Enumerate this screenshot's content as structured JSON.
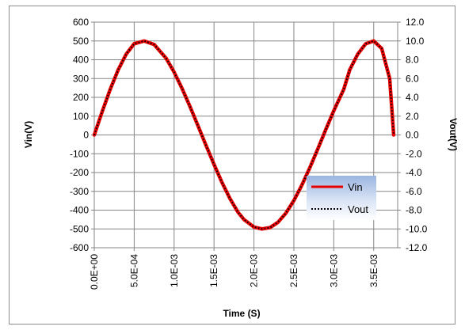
{
  "chart_data": {
    "type": "line",
    "title": "",
    "xlabel": "Time (S)",
    "ylabel": "Vin(V)",
    "y2label": "Vout(V)",
    "xlim": [
      0,
      0.0038
    ],
    "ylim": [
      -600,
      600
    ],
    "y2lim": [
      -12,
      12
    ],
    "grid": true,
    "legend_placement": "lower-right",
    "x_tick_labels": [
      "0.0E+00",
      "5.0E-04",
      "1.0E-03",
      "1.5E-03",
      "2.0E-03",
      "2.5E-03",
      "3.0E-03",
      "3.5E-03"
    ],
    "x_tick_values": [
      0,
      0.0005,
      0.001,
      0.0015,
      0.002,
      0.0025,
      0.003,
      0.0035
    ],
    "y_tick_labels": [
      "600",
      "500",
      "400",
      "300",
      "200",
      "100",
      "0",
      "-100",
      "-200",
      "-300",
      "-400",
      "-500",
      "-600"
    ],
    "y_tick_values": [
      600,
      500,
      400,
      300,
      200,
      100,
      0,
      -100,
      -200,
      -300,
      -400,
      -500,
      -600
    ],
    "y2_tick_labels": [
      "12.0",
      "10.0",
      "8.0",
      "6.0",
      "4.0",
      "2.0",
      "0.0",
      "-2.0",
      "-4.0",
      "-6.0",
      "-8.0",
      "-10.0",
      "-12.0"
    ],
    "series": [
      {
        "name": "Vin",
        "axis": "left",
        "color": "#e60000",
        "style": "solid",
        "x": [
          0,
          0.0001,
          0.0002,
          0.0003,
          0.0004,
          0.0005,
          0.000625,
          0.00075,
          0.0009,
          0.001,
          0.0011,
          0.0012,
          0.0013,
          0.0014,
          0.0015,
          0.0016,
          0.0017,
          0.0018,
          0.001875,
          0.002,
          0.0021,
          0.0022,
          0.0023,
          0.0024,
          0.0025,
          0.0026,
          0.0027,
          0.0028,
          0.0029,
          0.003,
          0.003125,
          0.0032,
          0.0033,
          0.0034,
          0.0035,
          0.0036,
          0.0037,
          0.00375
        ],
        "y": [
          0,
          125,
          243,
          347,
          430,
          485,
          500,
          481,
          408,
          334,
          247,
          150,
          48,
          -56,
          -157,
          -253,
          -339,
          -411,
          -450,
          -490,
          -500,
          -493,
          -465,
          -416,
          -349,
          -267,
          -174,
          -74,
          29,
          129,
          243,
          347,
          430,
          485,
          500,
          460,
          300,
          0
        ]
      },
      {
        "name": "Vout",
        "axis": "right",
        "color": "#000000",
        "style": "dotted",
        "x": [
          0,
          0.0001,
          0.0002,
          0.0003,
          0.0004,
          0.0005,
          0.000625,
          0.00075,
          0.0009,
          0.001,
          0.0011,
          0.0012,
          0.0013,
          0.0014,
          0.0015,
          0.0016,
          0.0017,
          0.0018,
          0.001875,
          0.002,
          0.0021,
          0.0022,
          0.0023,
          0.0024,
          0.0025,
          0.0026,
          0.0027,
          0.0028,
          0.0029,
          0.003,
          0.003125,
          0.0032,
          0.0033,
          0.0034,
          0.0035,
          0.0036,
          0.0037,
          0.00375
        ],
        "y": [
          0,
          2.5,
          4.86,
          6.94,
          8.6,
          9.7,
          10,
          9.62,
          8.16,
          6.68,
          4.94,
          3,
          0.96,
          -1.12,
          -3.14,
          -5.06,
          -6.78,
          -8.22,
          -9,
          -9.8,
          -10,
          -9.86,
          -9.3,
          -8.32,
          -6.98,
          -5.34,
          -3.48,
          -1.48,
          0.58,
          2.58,
          4.86,
          6.94,
          8.6,
          9.7,
          10,
          9.2,
          6,
          0
        ]
      }
    ]
  }
}
